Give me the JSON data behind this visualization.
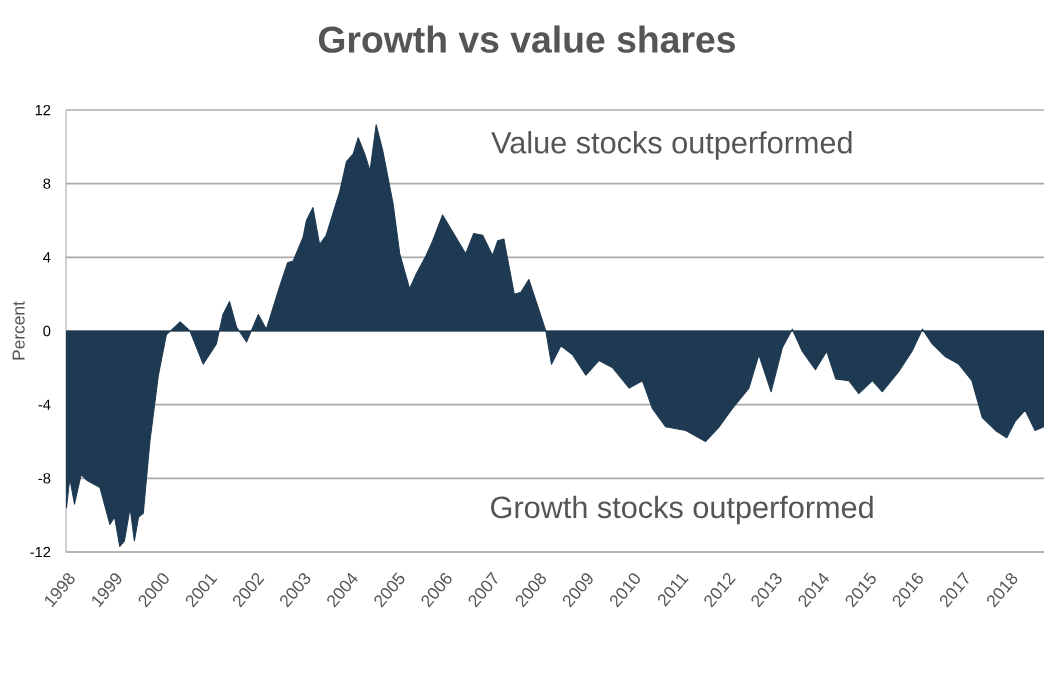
{
  "chart_data": {
    "type": "area",
    "title": "Growth vs value shares",
    "ylabel": "Percent",
    "annotations": [
      "Value stocks outperformed",
      "Growth stocks outperformed"
    ],
    "x": [
      1998.0,
      1998.01,
      1998.08,
      1998.18,
      1998.32,
      1998.44,
      1998.72,
      1998.93,
      1999.03,
      1999.14,
      1999.24,
      1999.36,
      1999.45,
      1999.54,
      1999.64,
      1999.78,
      1999.96,
      2000.13,
      2000.3,
      2000.42,
      2000.63,
      2000.91,
      2001.19,
      2001.33,
      2001.47,
      2001.62,
      2001.83,
      2002.08,
      2002.25,
      2002.53,
      2002.7,
      2002.82,
      2003.03,
      2003.1,
      2003.24,
      2003.38,
      2003.52,
      2003.81,
      2003.95,
      2004.09,
      2004.2,
      2004.34,
      2004.45,
      2004.58,
      2004.72,
      2004.94,
      2005.08,
      2005.29,
      2005.43,
      2005.64,
      2005.78,
      2005.99,
      2006.2,
      2006.48,
      2006.65,
      2006.84,
      2007.05,
      2007.16,
      2007.29,
      2007.51,
      2007.65,
      2007.82,
      2008.04,
      2008.18,
      2008.3,
      2008.5,
      2008.75,
      2009.03,
      2009.31,
      2009.6,
      2009.95,
      2010.23,
      2010.44,
      2010.72,
      2011.15,
      2011.57,
      2011.86,
      2012.14,
      2012.49,
      2012.7,
      2012.96,
      2013.2,
      2013.41,
      2013.62,
      2013.9,
      2014.14,
      2014.33,
      2014.61,
      2014.82,
      2015.11,
      2015.32,
      2015.67,
      2015.95,
      2016.17,
      2016.38,
      2016.66,
      2016.94,
      2017.22,
      2017.44,
      2017.72,
      2017.96,
      2018.14,
      2018.35,
      2018.56,
      2018.75
    ],
    "series": [
      {
        "color": "#1e3a52",
        "values": [
          -8.7,
          -9.6,
          -8.0,
          -9.4,
          -7.8,
          -8.1,
          -8.5,
          -10.5,
          -10.1,
          -11.7,
          -11.4,
          -9.6,
          -11.4,
          -10.1,
          -9.9,
          -6.0,
          -2.4,
          -0.2,
          0.2,
          0.5,
          0,
          -1.8,
          -0.7,
          0.9,
          1.6,
          0.2,
          -0.6,
          0.9,
          0.1,
          2.4,
          3.7,
          3.8,
          5.1,
          6.0,
          6.7,
          4.7,
          5.2,
          7.6,
          9.2,
          9.6,
          10.5,
          9.6,
          8.7,
          11.2,
          9.8,
          6.9,
          4.2,
          2.3,
          3.1,
          4.1,
          4.9,
          6.3,
          5.4,
          4.2,
          5.3,
          5.2,
          4.1,
          4.9,
          5.0,
          2.0,
          2.1,
          2.8,
          1.1,
          0,
          -1.8,
          -0.8,
          -1.3,
          -2.4,
          -1.6,
          -2.0,
          -3.1,
          -2.7,
          -4.2,
          -5.2,
          -5.4,
          -6.0,
          -5.2,
          -4.2,
          -3.1,
          -1.3,
          -3.3,
          -0.9,
          0.1,
          -1.1,
          -2.1,
          -1.1,
          -2.6,
          -2.7,
          -3.4,
          -2.7,
          -3.3,
          -2.2,
          -1.1,
          0.1,
          -0.7,
          -1.4,
          -1.8,
          -2.7,
          -4.7,
          -5.4,
          -5.8,
          -4.9,
          -4.3,
          -5.4,
          -5.2
        ]
      }
    ],
    "xlim": [
      1998,
      2018.75
    ],
    "ylim": [
      -12,
      12
    ],
    "xticks": [
      1998,
      1999,
      2000,
      2001,
      2002,
      2003,
      2004,
      2005,
      2006,
      2007,
      2008,
      2009,
      2010,
      2011,
      2012,
      2013,
      2014,
      2015,
      2016,
      2017,
      2018
    ],
    "yticks": [
      -12,
      -8,
      -4,
      0,
      4,
      8,
      12
    ],
    "grid": "y"
  }
}
